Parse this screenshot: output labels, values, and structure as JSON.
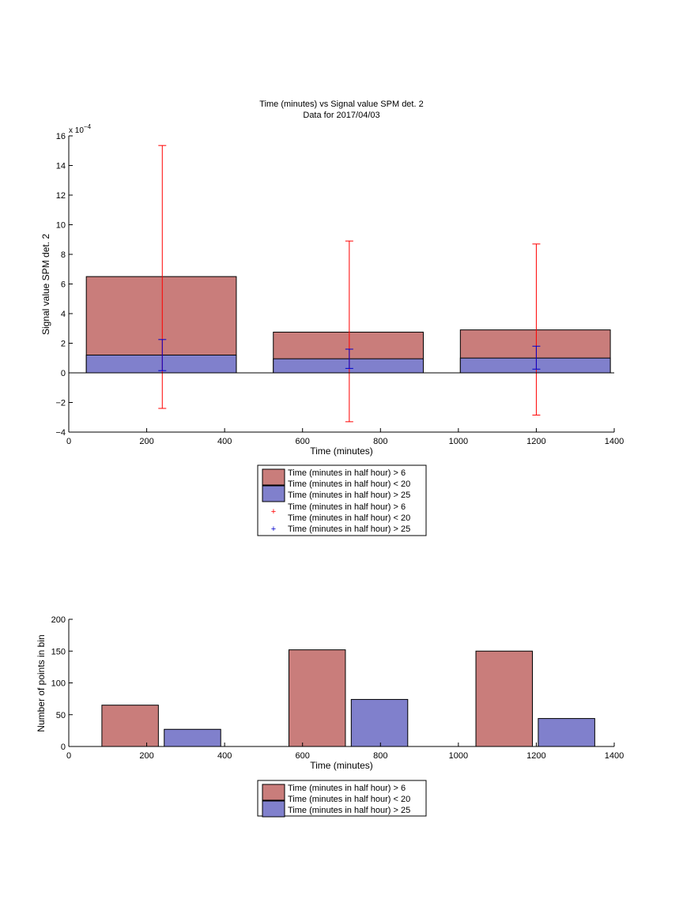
{
  "colors": {
    "bar_red": "#c97d7b",
    "bar_blue": "#8080cc",
    "err_red": "#ff0000",
    "err_blue": "#0000cc"
  },
  "chart_data": [
    {
      "type": "bar",
      "title": "Time (minutes) vs Signal value SPM det. 2",
      "subtitle": "Data for 2017/04/03",
      "xlabel": "Time (minutes)",
      "ylabel": "Signal value SPM det. 2",
      "y_exponent": "x 10",
      "y_exponent_power": "−4",
      "xlim": [
        0,
        1400
      ],
      "ylim": [
        -4,
        16
      ],
      "xticks": [
        0,
        200,
        400,
        600,
        800,
        1000,
        1200,
        1400
      ],
      "yticks": [
        -4,
        -2,
        0,
        2,
        4,
        6,
        8,
        10,
        12,
        14,
        16
      ],
      "ytick_labels": [
        "−4",
        "−2",
        "0",
        "2",
        "4",
        "6",
        "8",
        "10",
        "12",
        "14",
        "16"
      ],
      "grid": false,
      "bars": [
        {
          "x0": 45,
          "x1": 430,
          "red": 6.5,
          "blue": 1.2
        },
        {
          "x0": 525,
          "x1": 910,
          "red": 2.75,
          "blue": 0.95
        },
        {
          "x0": 1005,
          "x1": 1390,
          "red": 2.9,
          "blue": 1.0
        }
      ],
      "errorbars": [
        {
          "x": 240,
          "red": [
            -2.4,
            15.35
          ],
          "blue": [
            0.15,
            2.25
          ]
        },
        {
          "x": 720,
          "red": [
            -3.3,
            8.9
          ],
          "blue": [
            0.3,
            1.6
          ]
        },
        {
          "x": 1200,
          "red": [
            -2.85,
            8.7
          ],
          "blue": [
            0.25,
            1.8
          ]
        }
      ],
      "legend": {
        "placement": "below-center",
        "entries": [
          {
            "kind": "patch",
            "color": "bar_red",
            "lines": [
              "Time (minutes in half hour) > 6",
              "Time (minutes in half hour) < 20"
            ]
          },
          {
            "kind": "patch",
            "color": "bar_blue",
            "lines": [
              "Time (minutes in half hour) > 25"
            ]
          },
          {
            "kind": "marker",
            "color": "err_red",
            "lines": [
              "Time (minutes in half hour) > 6",
              "Time (minutes in half hour) < 20"
            ]
          },
          {
            "kind": "marker",
            "color": "err_blue",
            "lines": [
              "Time (minutes in half hour) > 25"
            ]
          }
        ]
      }
    },
    {
      "type": "bar",
      "xlabel": "Time (minutes)",
      "ylabel": "Number of points in bin",
      "xlim": [
        0,
        1400
      ],
      "ylim": [
        0,
        200
      ],
      "xticks": [
        0,
        200,
        400,
        600,
        800,
        1000,
        1200,
        1400
      ],
      "yticks": [
        0,
        50,
        100,
        150,
        200
      ],
      "grid": false,
      "bars": [
        {
          "x0": 85,
          "x1": 230,
          "value": 65,
          "series": "red"
        },
        {
          "x0": 245,
          "x1": 390,
          "value": 27,
          "series": "blue"
        },
        {
          "x0": 565,
          "x1": 710,
          "value": 152,
          "series": "red"
        },
        {
          "x0": 725,
          "x1": 870,
          "value": 74,
          "series": "blue"
        },
        {
          "x0": 1045,
          "x1": 1190,
          "value": 150,
          "series": "red"
        },
        {
          "x0": 1205,
          "x1": 1350,
          "value": 44,
          "series": "blue"
        }
      ],
      "legend": {
        "placement": "below-center",
        "entries": [
          {
            "kind": "patch",
            "color": "bar_red",
            "lines": [
              "Time (minutes in half hour) > 6",
              "Time (minutes in half hour) < 20"
            ]
          },
          {
            "kind": "patch",
            "color": "bar_blue",
            "lines": [
              "Time (minutes in half hour) > 25"
            ]
          }
        ]
      }
    }
  ]
}
